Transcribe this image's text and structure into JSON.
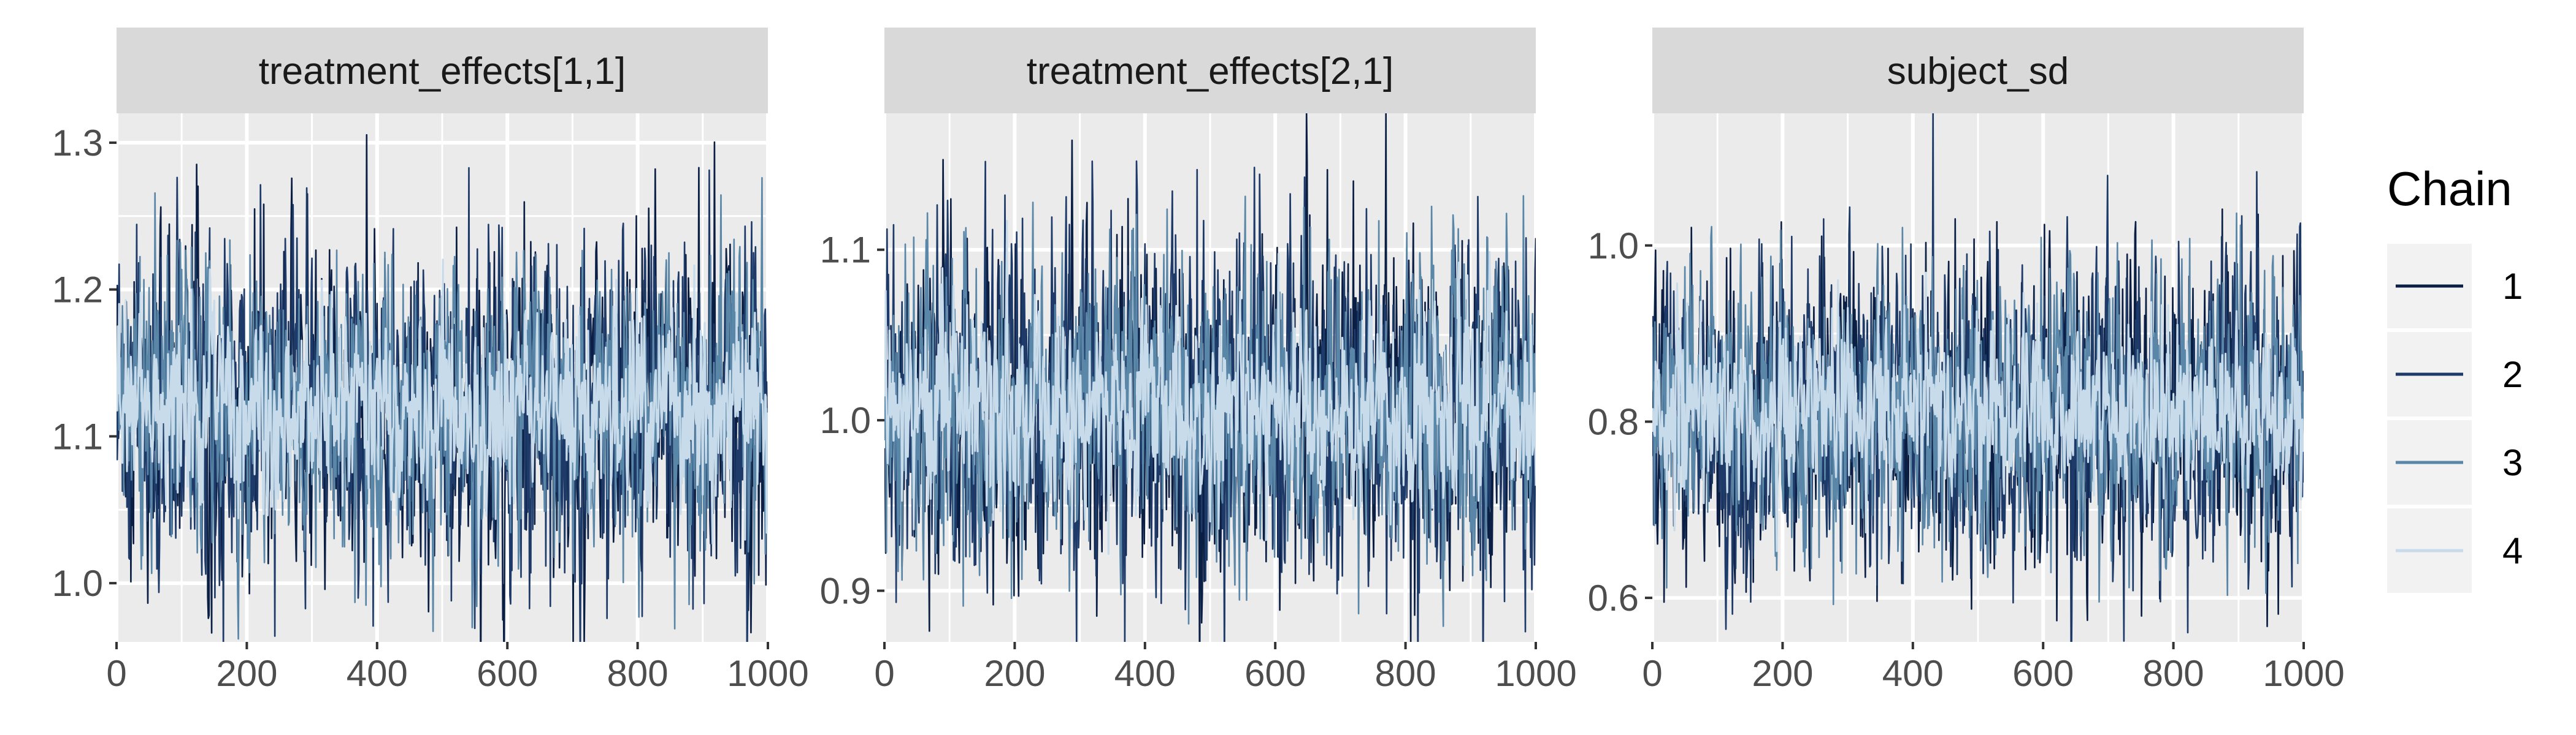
{
  "chart_data": {
    "type": "line",
    "layout": "facet",
    "legend": {
      "title": "Chain",
      "position": "right",
      "entries": [
        "1",
        "2",
        "3",
        "4"
      ]
    },
    "colors": {
      "chain_1": "#0b1f44",
      "chain_2": "#1d3a68",
      "chain_3": "#5a87a8",
      "chain_4": "#c8dbea",
      "panel_bg": "#ebebeb",
      "strip_bg": "#d9d9d9",
      "grid": "#ffffff"
    },
    "grid": true,
    "x_ticks": [
      0,
      200,
      400,
      600,
      800,
      1000
    ],
    "panels": [
      {
        "title": "treatment_effects[1,1]",
        "xlim": [
          0,
          1000
        ],
        "ylim": [
          0.96,
          1.32
        ],
        "y_ticks": [
          1.0,
          1.1,
          1.2,
          1.3
        ],
        "y_tick_labels": [
          "1.0",
          "1.1",
          "1.2",
          "1.3"
        ],
        "series": [
          {
            "name": "1",
            "center": 1.12,
            "sd": 0.055
          },
          {
            "name": "2",
            "center": 1.12,
            "sd": 0.055
          },
          {
            "name": "3",
            "center": 1.12,
            "sd": 0.05
          },
          {
            "name": "4",
            "center": 1.12,
            "sd": 0.03
          }
        ]
      },
      {
        "title": "treatment_effects[2,1]",
        "xlim": [
          0,
          1000
        ],
        "ylim": [
          0.87,
          1.18
        ],
        "y_ticks": [
          0.9,
          1.0,
          1.1
        ],
        "y_tick_labels": [
          "0.9",
          "1.0",
          "1.1"
        ],
        "series": [
          {
            "name": "1",
            "center": 1.005,
            "sd": 0.05
          },
          {
            "name": "2",
            "center": 1.005,
            "sd": 0.05
          },
          {
            "name": "3",
            "center": 1.005,
            "sd": 0.045
          },
          {
            "name": "4",
            "center": 1.005,
            "sd": 0.028
          }
        ]
      },
      {
        "title": "subject_sd",
        "xlim": [
          0,
          1000
        ],
        "ylim": [
          0.55,
          1.15
        ],
        "y_ticks": [
          0.6,
          0.8,
          1.0
        ],
        "y_tick_labels": [
          "0.6",
          "0.8",
          "1.0"
        ],
        "series": [
          {
            "name": "1",
            "center": 0.81,
            "sd": 0.085
          },
          {
            "name": "2",
            "center": 0.81,
            "sd": 0.085
          },
          {
            "name": "3",
            "center": 0.81,
            "sd": 0.075
          },
          {
            "name": "4",
            "center": 0.81,
            "sd": 0.045
          }
        ]
      }
    ]
  }
}
